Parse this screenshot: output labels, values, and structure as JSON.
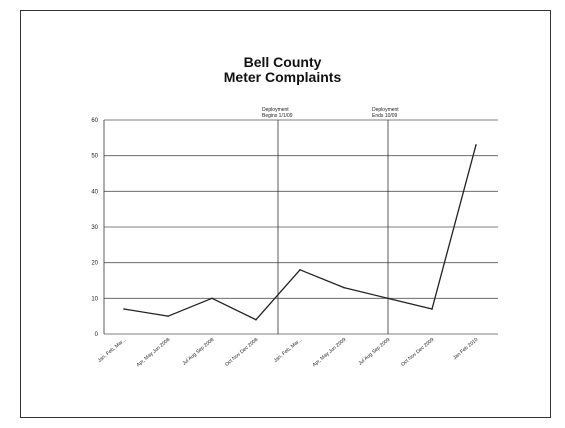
{
  "chart_data": {
    "type": "line",
    "title": "Bell County",
    "subtitle": "Meter Complaints",
    "categories": [
      "Jan, Feb, Mar...",
      "Apr, May Jun 2008",
      "Jul Aug Sep 2008",
      "Oct Nov Dec 2008",
      "Jan, Feb, Mar...",
      "Apr, May Jun 2009",
      "Jul Aug Sep 2009",
      "Oct Nov Dec 2009",
      "Jan Feb 2010"
    ],
    "series": [
      {
        "values": [
          7,
          5,
          10,
          4,
          18,
          13,
          10,
          7,
          53
        ]
      }
    ],
    "ylim": [
      0,
      60
    ],
    "yticks": [
      0,
      10,
      20,
      30,
      40,
      50,
      60
    ],
    "xlabel": "",
    "ylabel": "",
    "grid": true,
    "annotations": [
      {
        "line1": "Deployment",
        "line2": "Begins 1/1/09",
        "at_index": 3.5
      },
      {
        "line1": "Deployment",
        "line2": "Ends 10/09",
        "at_index": 6
      }
    ],
    "colors": {
      "line": "#222222",
      "grid": "#555555"
    }
  }
}
